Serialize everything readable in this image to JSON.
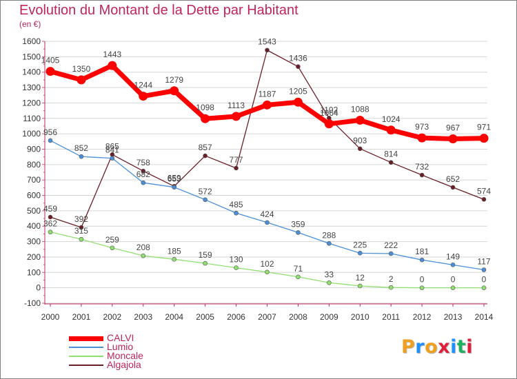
{
  "chart_data": {
    "type": "line",
    "title": "Evolution du Montant de la Dette par Habitant",
    "subtitle": "(en €)",
    "xlabel": "",
    "ylabel": "",
    "categories": [
      "2000",
      "2001",
      "2002",
      "2003",
      "2004",
      "2005",
      "2006",
      "2007",
      "2008",
      "2009",
      "2010",
      "2011",
      "2012",
      "2013",
      "2014"
    ],
    "ylim": [
      -100,
      1600
    ],
    "yticks": [
      "-100",
      "0",
      "100",
      "200",
      "300",
      "400",
      "500",
      "600",
      "700",
      "800",
      "900",
      "1000",
      "1100",
      "1200",
      "1300",
      "1400",
      "1500",
      "1600"
    ],
    "grid": true,
    "legend_position": "bottom-left",
    "series": [
      {
        "name": "CALVI",
        "color": "#ff0000",
        "values": [
          1405,
          1350,
          1443,
          1244,
          1279,
          1098,
          1113,
          1187,
          1205,
          1064,
          1088,
          1024,
          973,
          967,
          971
        ],
        "labels": [
          "1405",
          "1350",
          "1443",
          "1244",
          "1279",
          "1098",
          "1113",
          "1187",
          "1205",
          "1064",
          "1088",
          "1024",
          "973",
          "967",
          "971"
        ]
      },
      {
        "name": "Lumio",
        "color": "#4a8fd8",
        "values": [
          956,
          852,
          841,
          682,
          653,
          572,
          485,
          424,
          359,
          288,
          225,
          222,
          181,
          149,
          117
        ],
        "labels": [
          "956",
          "852",
          "841",
          "682",
          "653",
          "572",
          "485",
          "424",
          "359",
          "288",
          "225",
          "222",
          "181",
          "149",
          "117"
        ]
      },
      {
        "name": "Moncale",
        "color": "#90e070",
        "values": [
          362,
          315,
          259,
          208,
          185,
          159,
          130,
          102,
          71,
          33,
          12,
          2,
          0,
          0,
          0
        ],
        "labels": [
          "362",
          "315",
          "259",
          "208",
          "185",
          "159",
          "130",
          "102",
          "71",
          "33",
          "12",
          "2",
          "0",
          "0",
          "0"
        ]
      },
      {
        "name": "Algajola",
        "color": "#6b1e26",
        "values": [
          459,
          392,
          865,
          758,
          659,
          857,
          777,
          1543,
          1436,
          1102,
          903,
          814,
          732,
          652,
          574
        ],
        "labels": [
          "459",
          "392",
          "865",
          "758",
          "659",
          "857",
          "777",
          "1543",
          "1436",
          "1102",
          "903",
          "814",
          "732",
          "652",
          "574"
        ]
      }
    ]
  },
  "logo": {
    "text": "Proxiti",
    "colors": [
      "#f0a020",
      "#1e90ff",
      "#f0a020",
      "#e0203a",
      "#1e90ff",
      "#20b060",
      "#e0203a"
    ]
  }
}
